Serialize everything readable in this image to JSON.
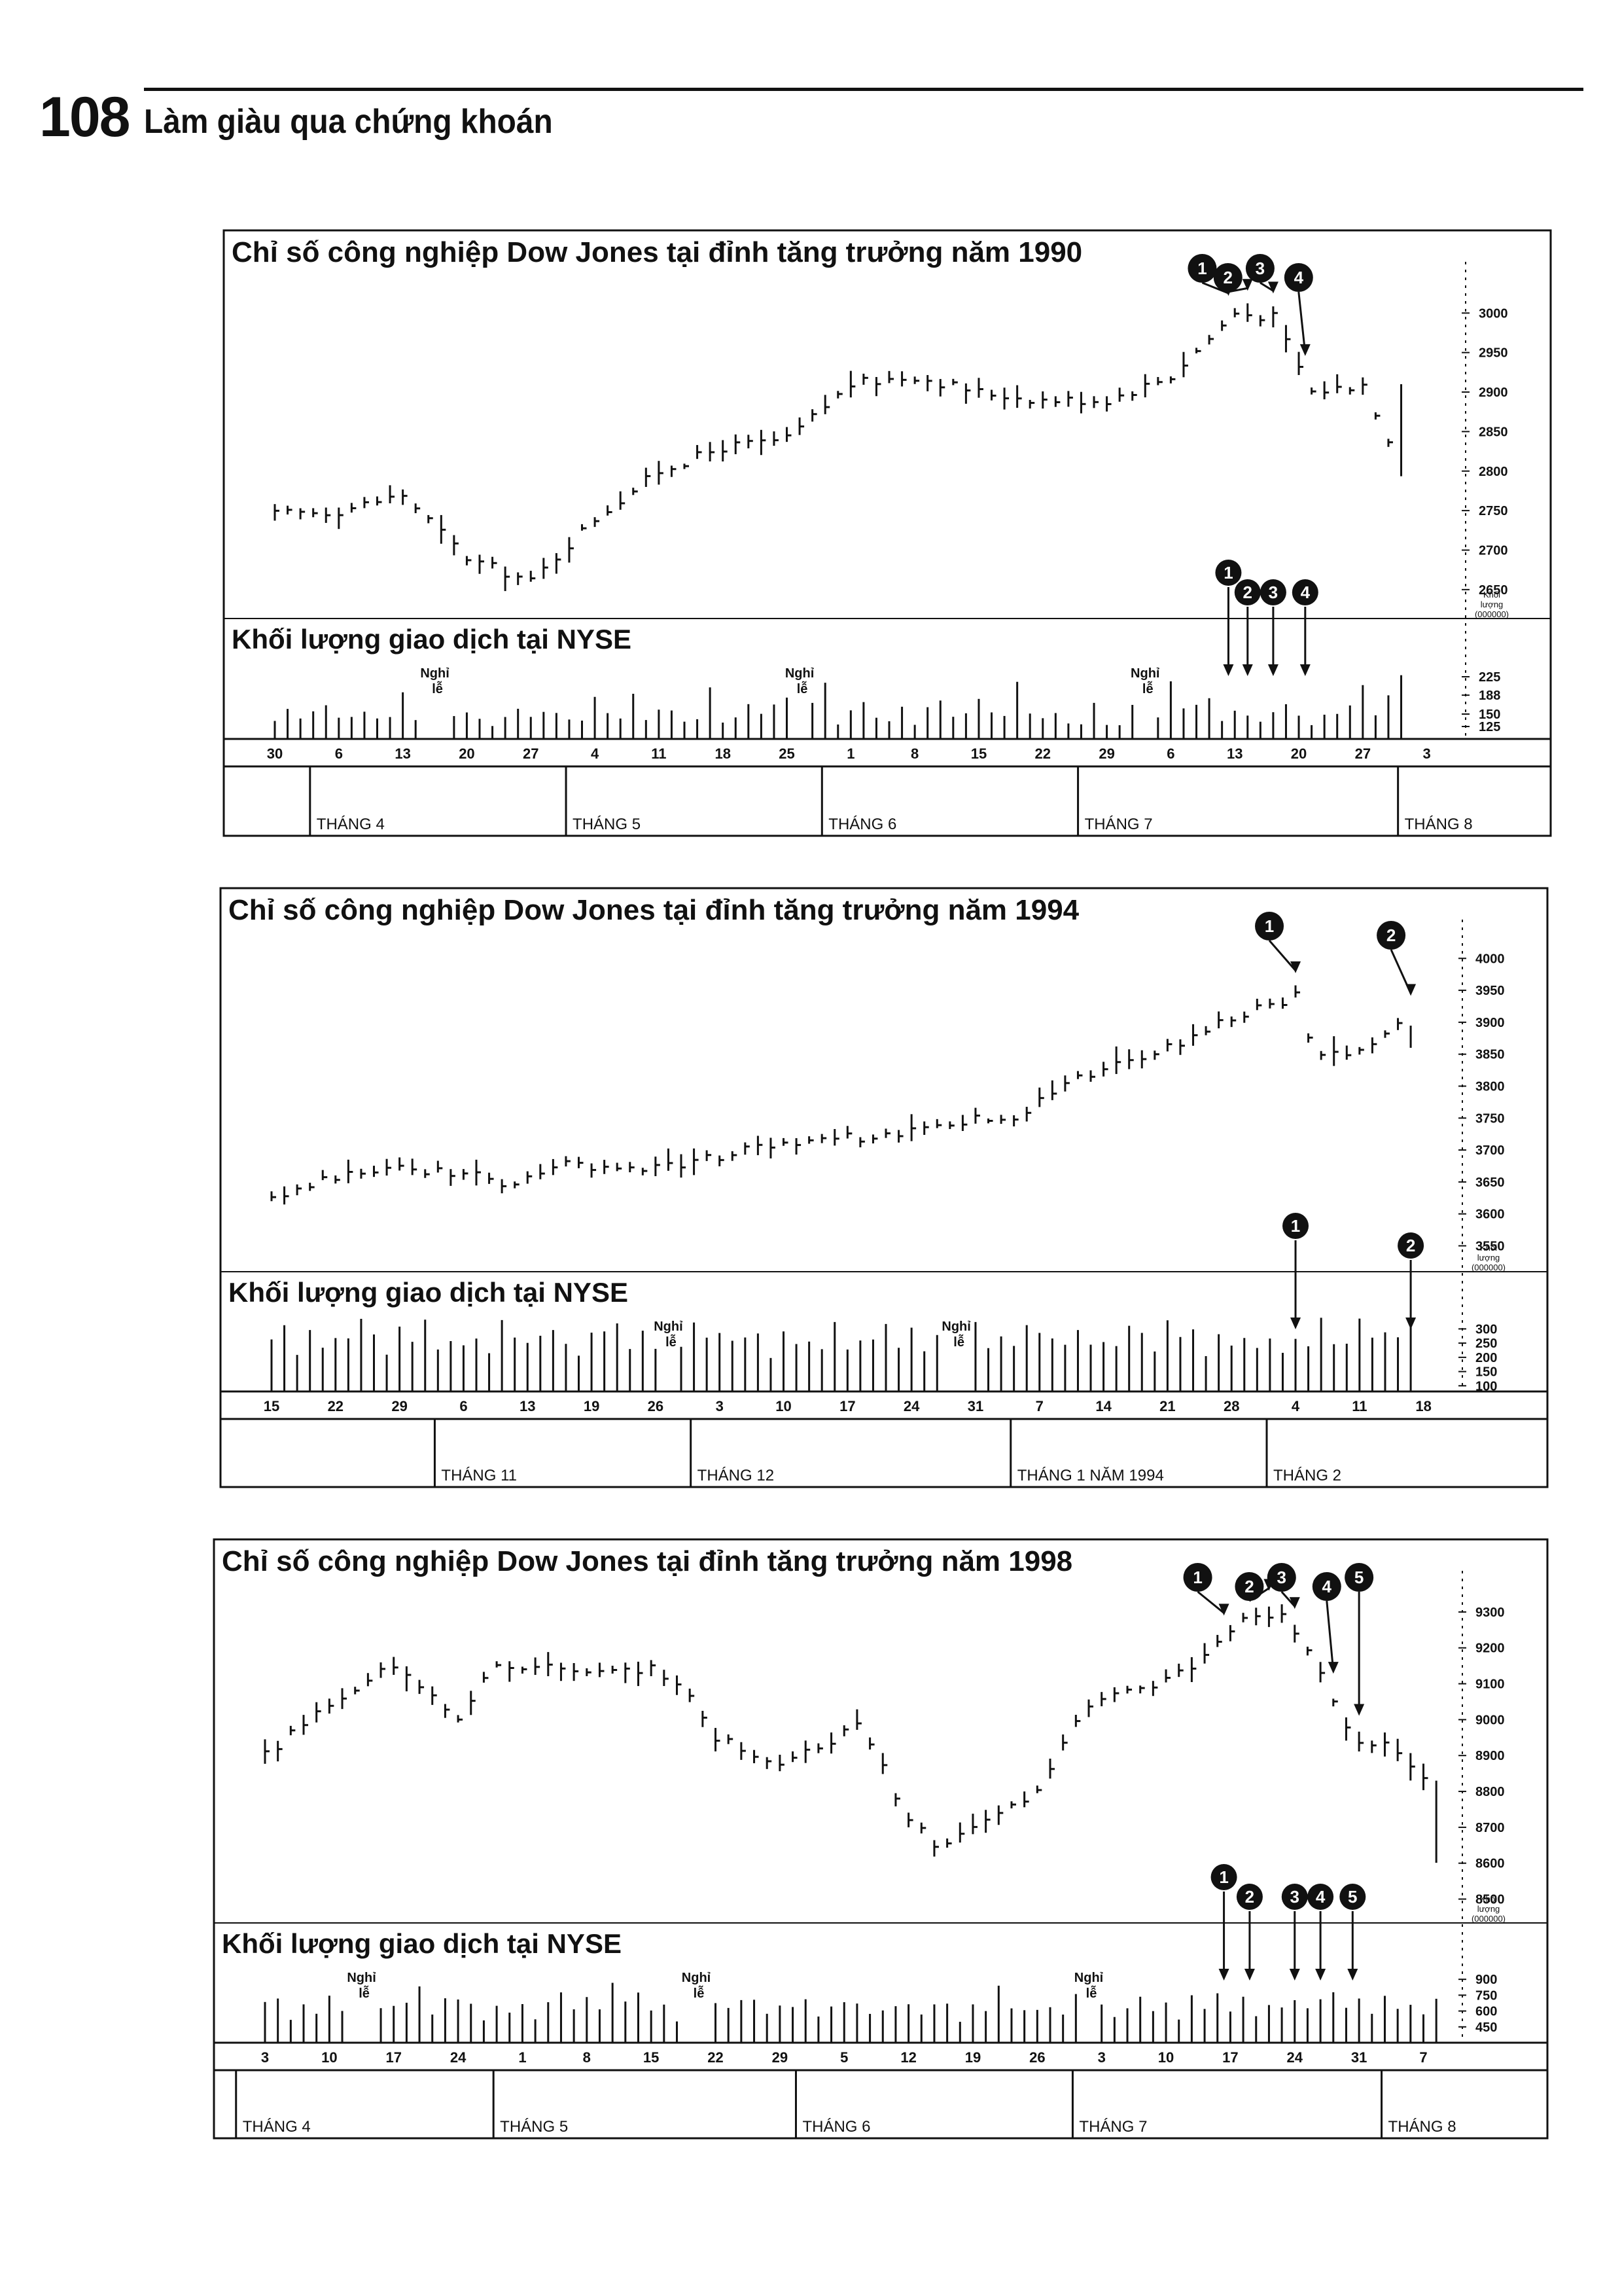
{
  "page": {
    "number": "108",
    "book_title": "Làm giàu qua chứng khoán"
  },
  "chart_data": [
    {
      "type": "ohlc",
      "title": "Chỉ số công nghiệp Dow Jones tại đỉnh tăng trưởng năm 1990",
      "volume_title": "Khối lượng giao dịch tại NYSE",
      "volume_unit": [
        "Khối",
        "lượng",
        "(000000)"
      ],
      "y_ticks": [
        "3000",
        "2950",
        "2900",
        "2850",
        "2800",
        "2750",
        "2700",
        "2650"
      ],
      "ylim": [
        2630,
        3040
      ],
      "volume_ticks": [
        "225",
        "188",
        "150",
        "125"
      ],
      "vol_lim": [
        100,
        250
      ],
      "x_dates": [
        "30",
        "6",
        "13",
        "20",
        "27",
        "4",
        "11",
        "18",
        "25",
        "1",
        "8",
        "15",
        "22",
        "29",
        "6",
        "13",
        "20",
        "27",
        "3"
      ],
      "months": [
        "THÁNG 4",
        "THÁNG 5",
        "THÁNG 6",
        "THÁNG 7",
        "THÁNG 8"
      ],
      "month_starts": [
        1,
        5,
        9,
        13,
        18
      ],
      "holiday_label": "Nghỉ lễ",
      "holidays": [
        2.5,
        8.2,
        13.6
      ],
      "markers": [
        {
          "label": "1",
          "x": 14.9
        },
        {
          "label": "2",
          "x": 15.2
        },
        {
          "label": "3",
          "x": 15.6
        },
        {
          "label": "4",
          "x": 16.1
        }
      ],
      "vol_markers": [
        {
          "label": "1",
          "x": 14.9
        },
        {
          "label": "2",
          "x": 15.2
        },
        {
          "label": "3",
          "x": 15.6
        },
        {
          "label": "4",
          "x": 16.1
        }
      ],
      "close_path": [
        [
          0,
          2745
        ],
        [
          1,
          2750
        ],
        [
          2,
          2770
        ],
        [
          3,
          2690
        ],
        [
          4,
          2660
        ],
        [
          5,
          2740
        ],
        [
          6,
          2800
        ],
        [
          7,
          2830
        ],
        [
          8,
          2840
        ],
        [
          9,
          2910
        ],
        [
          10,
          2920
        ],
        [
          11,
          2900
        ],
        [
          12,
          2890
        ],
        [
          13,
          2890
        ],
        [
          14,
          2920
        ],
        [
          15,
          3000
        ],
        [
          15.6,
          2995
        ],
        [
          16.2,
          2900
        ],
        [
          17,
          2910
        ],
        [
          17.7,
          2790
        ]
      ],
      "volume_pattern": [
        140,
        162,
        128,
        150,
        178,
        135,
        148,
        170,
        132,
        158,
        190,
        143,
        165,
        200,
        150
      ]
    },
    {
      "type": "ohlc",
      "title": "Chỉ số công nghiệp Dow Jones tại đỉnh tăng trưởng năm 1994",
      "volume_title": "Khối lượng giao dịch tại NYSE",
      "volume_unit": [
        "Khối",
        "lượng",
        "(000000)"
      ],
      "y_ticks": [
        "4000",
        "3950",
        "3900",
        "3850",
        "3800",
        "3750",
        "3700",
        "3650",
        "3600",
        "3550"
      ],
      "ylim": [
        3530,
        4030
      ],
      "volume_ticks": [
        "300",
        "250",
        "200",
        "150",
        "100"
      ],
      "vol_lim": [
        80,
        340
      ],
      "x_dates": [
        "15",
        "22",
        "29",
        "6",
        "13",
        "19",
        "26",
        "3",
        "10",
        "17",
        "24",
        "31",
        "7",
        "14",
        "21",
        "28",
        "4",
        "11",
        "18"
      ],
      "months": [
        "THÁNG 11",
        "THÁNG 12",
        "THÁNG 1 NĂM 1994",
        "THÁNG 2"
      ],
      "month_starts": [
        3,
        7,
        12,
        16
      ],
      "holiday_label": "Nghỉ lễ",
      "holidays": [
        6.2,
        10.7
      ],
      "markers": [
        {
          "label": "1",
          "x": 16.0
        },
        {
          "label": "2",
          "x": 17.8
        }
      ],
      "vol_markers": [
        {
          "label": "1",
          "x": 16.0
        },
        {
          "label": "2",
          "x": 17.8
        }
      ],
      "close_path": [
        [
          0,
          3620
        ],
        [
          1,
          3660
        ],
        [
          2,
          3670
        ],
        [
          3,
          3665
        ],
        [
          3.8,
          3640
        ],
        [
          4.5,
          3680
        ],
        [
          5.5,
          3670
        ],
        [
          6.5,
          3680
        ],
        [
          7.5,
          3700
        ],
        [
          8.5,
          3720
        ],
        [
          9.5,
          3720
        ],
        [
          10.5,
          3740
        ],
        [
          11,
          3750
        ],
        [
          11.5,
          3740
        ],
        [
          12,
          3780
        ],
        [
          13,
          3830
        ],
        [
          14,
          3860
        ],
        [
          15,
          3910
        ],
        [
          16,
          3940
        ],
        [
          16.3,
          3840
        ],
        [
          17,
          3860
        ],
        [
          17.9,
          3910
        ]
      ],
      "volume_pattern": [
        260,
        290,
        230,
        300,
        250,
        280,
        240,
        310,
        270,
        230,
        295,
        260,
        300,
        240,
        285
      ]
    },
    {
      "type": "ohlc",
      "title": "Chỉ số công nghiệp Dow Jones tại đỉnh tăng trưởng năm 1998",
      "volume_title": "Khối lượng giao dịch tại NYSE",
      "volume_unit": [
        "Khối",
        "lượng",
        "(000000)"
      ],
      "y_ticks": [
        "9300",
        "9200",
        "9100",
        "9000",
        "8900",
        "8800",
        "8700",
        "8600",
        "8500"
      ],
      "ylim": [
        8470,
        9360
      ],
      "volume_ticks": [
        "900",
        "750",
        "600",
        "450"
      ],
      "vol_lim": [
        300,
        1000
      ],
      "x_dates": [
        "3",
        "10",
        "17",
        "24",
        "1",
        "8",
        "15",
        "22",
        "29",
        "5",
        "12",
        "19",
        "26",
        "3",
        "10",
        "17",
        "24",
        "31",
        "7"
      ],
      "months": [
        "THÁNG 4",
        "THÁNG 5",
        "THÁNG 6",
        "THÁNG 7",
        "THÁNG 8"
      ],
      "month_starts": [
        0,
        4,
        8.7,
        13,
        17.8
      ],
      "holiday_label": "Nghỉ lễ",
      "holidays": [
        1.5,
        6.7,
        12.8
      ],
      "markers": [
        {
          "label": "1",
          "x": 14.9
        },
        {
          "label": "2",
          "x": 15.6
        },
        {
          "label": "3",
          "x": 16.0
        },
        {
          "label": "4",
          "x": 16.6
        },
        {
          "label": "5",
          "x": 17.0
        }
      ],
      "vol_markers": [
        {
          "label": "1",
          "x": 14.9
        },
        {
          "label": "2",
          "x": 15.3
        },
        {
          "label": "3",
          "x": 16.0
        },
        {
          "label": "4",
          "x": 16.4
        },
        {
          "label": "5",
          "x": 16.9
        }
      ],
      "close_path": [
        [
          0,
          8900
        ],
        [
          1,
          9050
        ],
        [
          2,
          9150
        ],
        [
          3,
          9000
        ],
        [
          3.5,
          9150
        ],
        [
          4.5,
          9150
        ],
        [
          5,
          9120
        ],
        [
          6,
          9140
        ],
        [
          6.5,
          9100
        ],
        [
          7,
          8950
        ],
        [
          8,
          8880
        ],
        [
          8.7,
          8930
        ],
        [
          9.2,
          9000
        ],
        [
          10,
          8720
        ],
        [
          10.5,
          8640
        ],
        [
          11.5,
          8750
        ],
        [
          12,
          8800
        ],
        [
          12.8,
          9050
        ],
        [
          13.5,
          9080
        ],
        [
          14.5,
          9150
        ],
        [
          15.2,
          9280
        ],
        [
          15.8,
          9300
        ],
        [
          16.5,
          9100
        ],
        [
          16.9,
          8950
        ],
        [
          17.5,
          8920
        ],
        [
          18,
          8830
        ],
        [
          18.3,
          8500
        ]
      ],
      "volume_pattern": [
        620,
        700,
        560,
        680,
        600,
        750,
        580,
        640,
        720,
        560,
        690,
        610,
        800,
        640,
        700
      ]
    }
  ]
}
